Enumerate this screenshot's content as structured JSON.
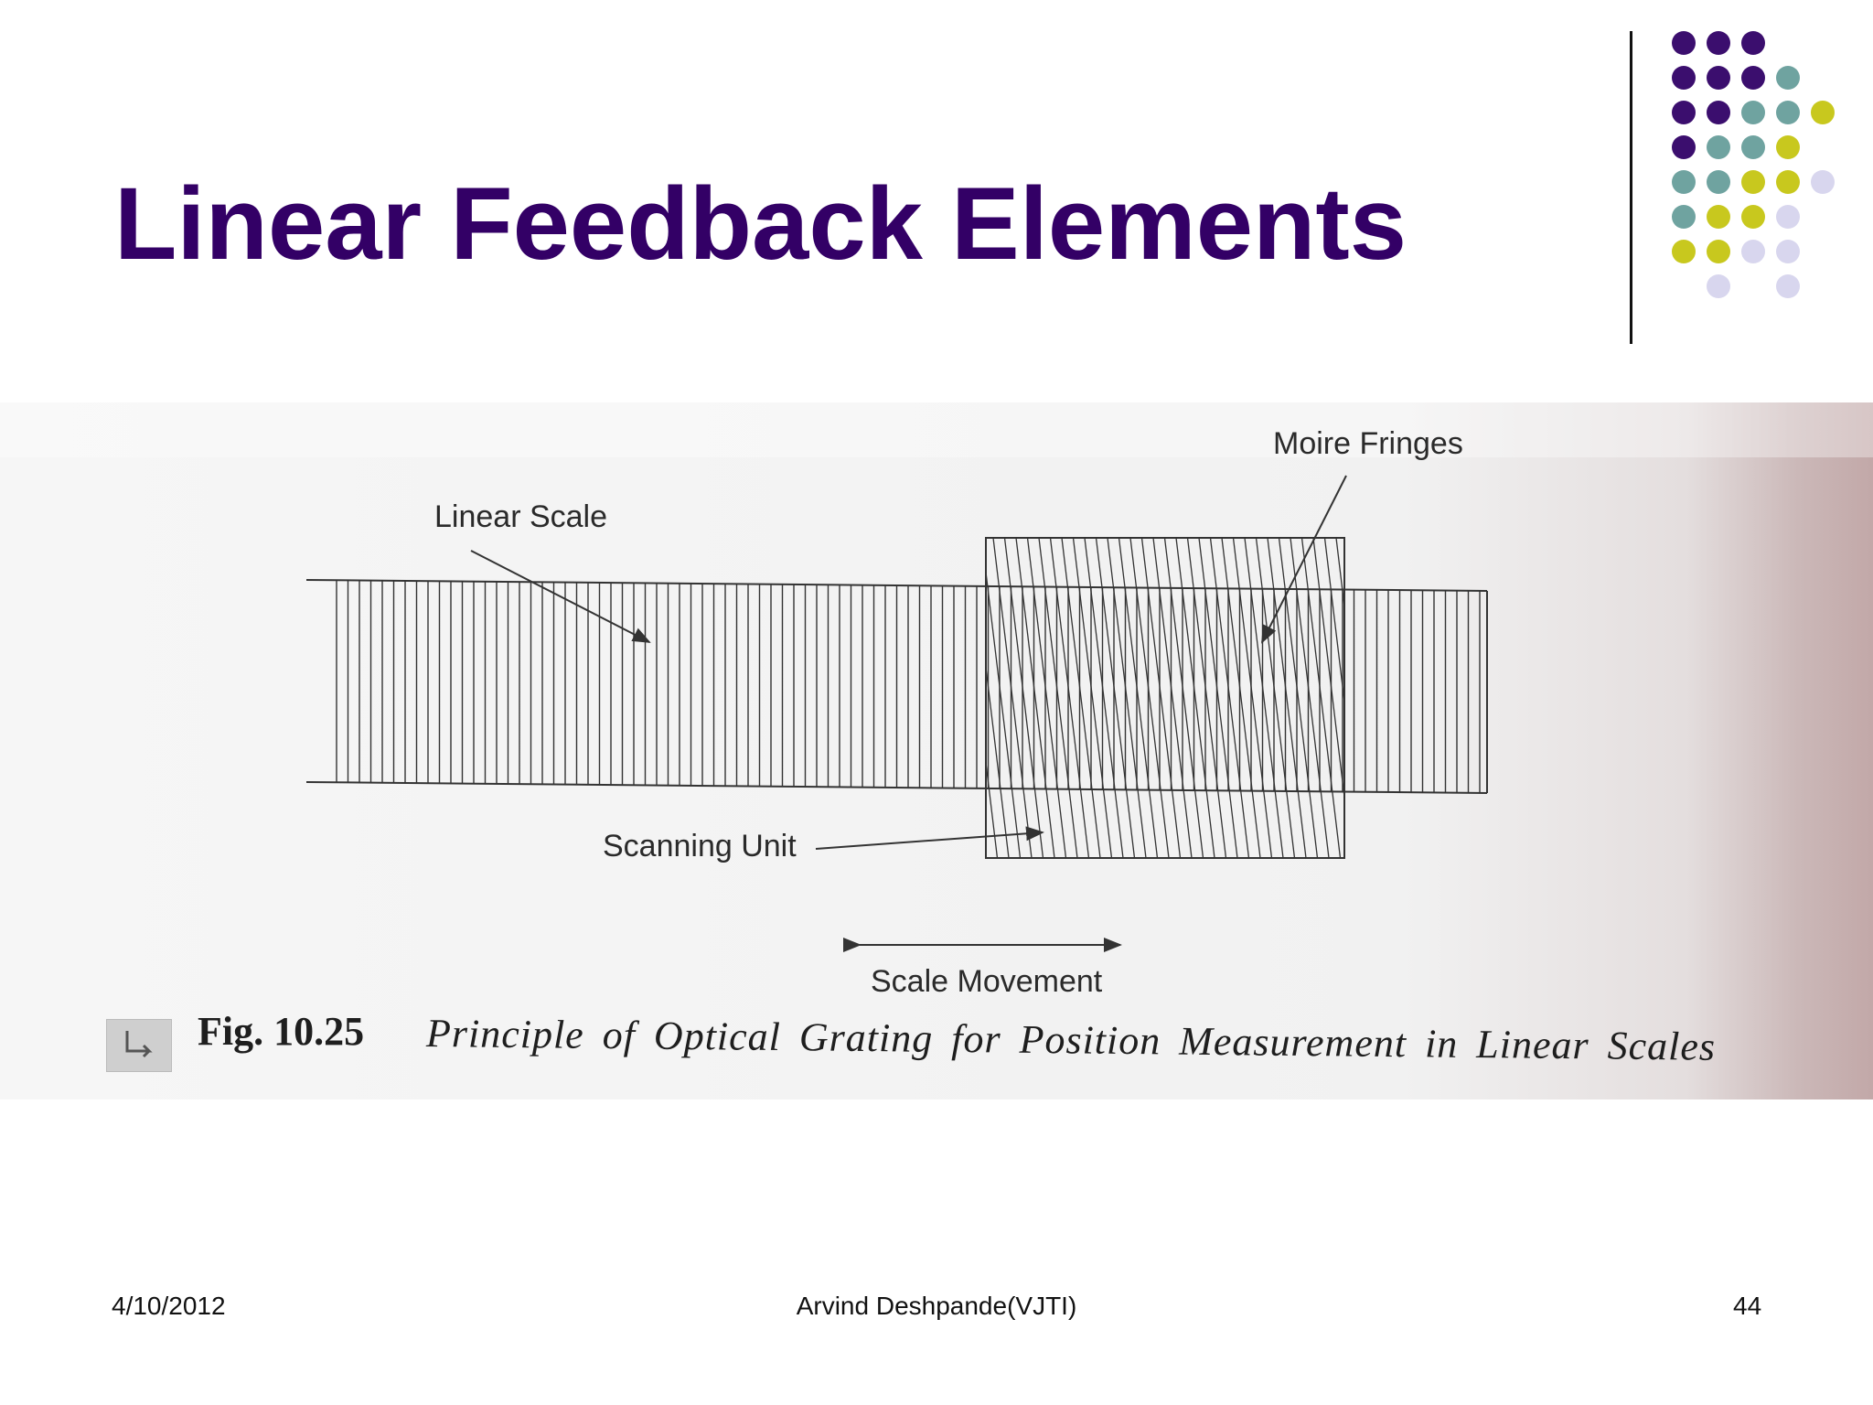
{
  "slide": {
    "title": "Linear Feedback Elements",
    "title_color": "#330066",
    "corner_dots": {
      "icon": "dot-grid-decoration",
      "colors": {
        "purple": "#3b0e6e",
        "teal": "#6fa3a0",
        "olive": "#c8c81e",
        "lavender": "#d8d6ee"
      }
    }
  },
  "figure": {
    "labels": {
      "moire_fringes": "Moire Fringes",
      "linear_scale": "Linear Scale",
      "scanning_unit": "Scanning Unit",
      "scale_movement": "Scale Movement"
    },
    "caption": {
      "icon": "figure-marker-icon",
      "number": "Fig. 10.25",
      "text": "Principle of Optical Grating for Position Measurement in Linear Scales"
    }
  },
  "footer": {
    "date": "4/10/2012",
    "author": "Arvind Deshpande(VJTI)",
    "page": "44"
  }
}
